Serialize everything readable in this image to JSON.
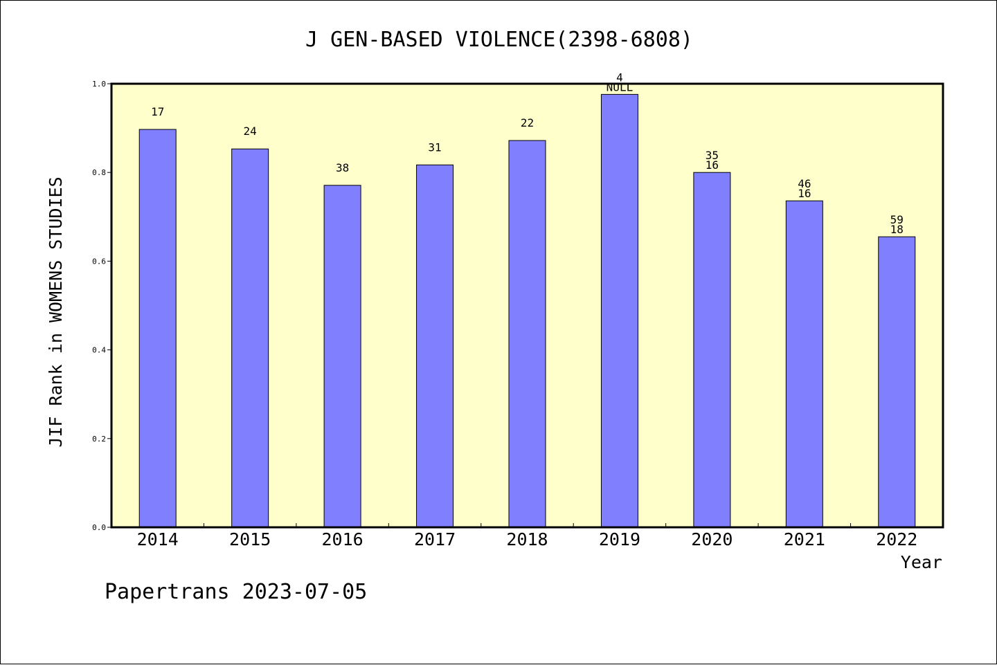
{
  "chart_data": {
    "type": "bar",
    "title": "J GEN-BASED VIOLENCE(2398-6808)",
    "xlabel": "Year",
    "ylabel": "JIF Rank in WOMENS STUDIES",
    "ylim": [
      0.0,
      1.0
    ],
    "yticks": [
      "0.0",
      "0.2",
      "0.4",
      "0.6",
      "0.8",
      "1.0"
    ],
    "ytick_values": [
      0.0,
      0.2,
      0.4,
      0.6,
      0.8,
      1.0
    ],
    "categories": [
      "2014",
      "2015",
      "2016",
      "2017",
      "2018",
      "2019",
      "2020",
      "2021",
      "2022"
    ],
    "series": [
      {
        "values": [
          0.897,
          0.853,
          0.771,
          0.817,
          0.872,
          0.976,
          0.8,
          0.736,
          0.655
        ],
        "color": "#8080ff",
        "labels_top": [
          "17",
          "24",
          "38",
          "31",
          "22",
          "4",
          "35",
          "46",
          "59"
        ],
        "labels_bottom": [
          "",
          "",
          "",
          "",
          "",
          "NULL",
          "16",
          "16",
          "18"
        ]
      }
    ],
    "plot_background": "#ffffcc",
    "grid": false,
    "legend": "none"
  },
  "footer": {
    "credit": "Papertrans 2023-07-05"
  }
}
